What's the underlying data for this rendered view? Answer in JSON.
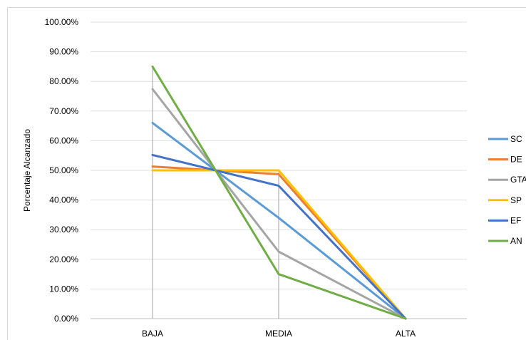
{
  "chart_data": {
    "type": "line",
    "title": "",
    "xlabel": "",
    "ylabel": "Porcentaje Alcanzado",
    "categories": [
      "BAJA",
      "MEDIA",
      "ALTA"
    ],
    "ylim": [
      0,
      1
    ],
    "yticks": [
      "0.00%",
      "10.00%",
      "20.00%",
      "30.00%",
      "40.00%",
      "50.00%",
      "60.00%",
      "70.00%",
      "80.00%",
      "90.00%",
      "100.00%"
    ],
    "grid": true,
    "legend_position": "right",
    "series": [
      {
        "name": "SC",
        "color": "#5B9BD5",
        "values": [
          0.66,
          0.34,
          0.0
        ]
      },
      {
        "name": "DE",
        "color": "#ED7D31",
        "values": [
          0.513,
          0.487,
          0.0
        ]
      },
      {
        "name": "GTA",
        "color": "#A5A5A5",
        "values": [
          0.774,
          0.226,
          0.0
        ]
      },
      {
        "name": "SP",
        "color": "#FFC000",
        "values": [
          0.5,
          0.5,
          0.0
        ]
      },
      {
        "name": "EF",
        "color": "#4472C4",
        "values": [
          0.552,
          0.448,
          0.0
        ]
      },
      {
        "name": "AN",
        "color": "#70AD47",
        "values": [
          0.85,
          0.15,
          0.0
        ]
      }
    ]
  }
}
